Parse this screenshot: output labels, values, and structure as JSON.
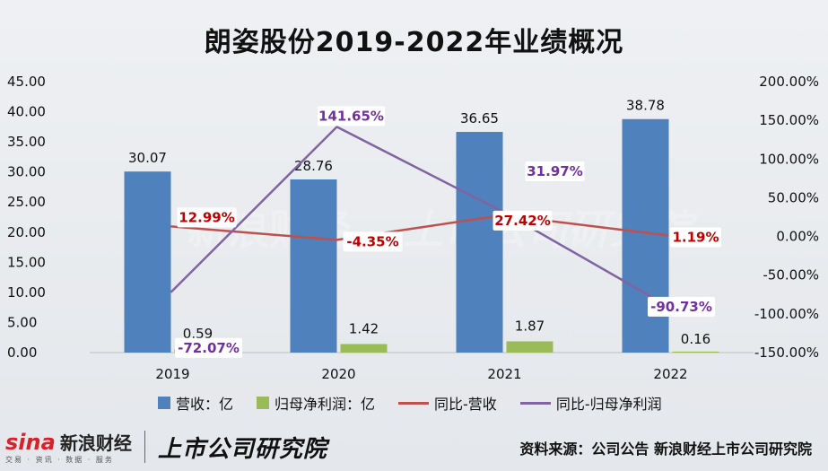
{
  "title": "朗姿股份2019-2022年业绩概况",
  "chart_data": {
    "type": "bar",
    "categories": [
      "2019",
      "2020",
      "2021",
      "2022"
    ],
    "left_axis": {
      "ticks": [
        "45.00",
        "40.00",
        "35.00",
        "30.00",
        "25.00",
        "20.00",
        "15.00",
        "10.00",
        "5.00",
        "0.00"
      ],
      "ylim": [
        0,
        45
      ]
    },
    "right_axis": {
      "ticks": [
        "200.00%",
        "150.00%",
        "100.00%",
        "50.00%",
        "0.00%",
        "-50.00%",
        "-100.00%",
        "-150.00%"
      ],
      "ylim": [
        -150,
        200
      ]
    },
    "series": [
      {
        "name": "营收：亿",
        "kind": "bar",
        "axis": "left",
        "color": "#4f81bd",
        "values": [
          30.07,
          28.76,
          36.65,
          38.78
        ],
        "labels": [
          "30.07",
          "28.76",
          "36.65",
          "38.78"
        ]
      },
      {
        "name": "归母净利润：亿",
        "kind": "bar",
        "axis": "left",
        "color": "#9bbb59",
        "values": [
          0.59,
          1.42,
          1.87,
          0.16
        ],
        "labels": [
          "0.59",
          "1.42",
          "1.87",
          "0.16"
        ]
      },
      {
        "name": "同比-营收",
        "kind": "line",
        "axis": "right",
        "color": "#c0504d",
        "values": [
          12.99,
          -4.35,
          27.42,
          1.19
        ],
        "labels": [
          "12.99%",
          "-4.35%",
          "27.42%",
          "1.19%"
        ]
      },
      {
        "name": "同比-归母净利润",
        "kind": "line",
        "axis": "right",
        "color": "#8064a2",
        "values": [
          -72.07,
          141.65,
          31.97,
          -90.73
        ],
        "labels": [
          "-72.07%",
          "141.65%",
          "31.97%",
          "-90.73%"
        ]
      }
    ],
    "legend_position": "bottom",
    "grid": false
  },
  "watermark": {
    "sina": "sina",
    "name": "新浪财经",
    "sub": "交易 · 资讯 · 数据 · 服务",
    "inst": "上市公司研究院"
  },
  "source": "资料来源：公司公告 新浪财经上市公司研究院"
}
